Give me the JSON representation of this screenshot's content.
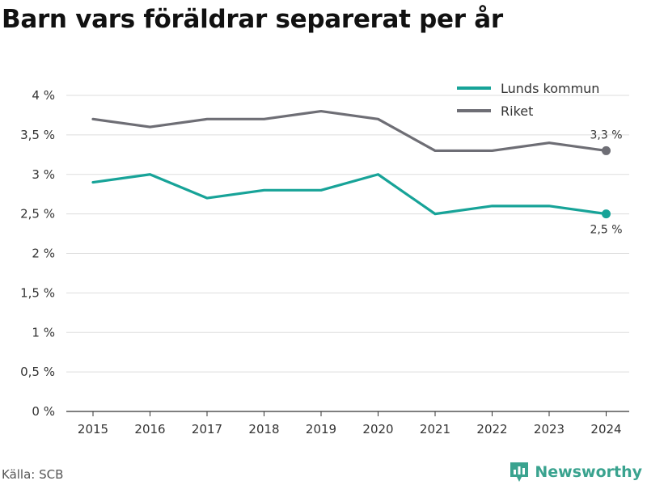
{
  "title": "Barn vars föräldrar separerat per år",
  "source": "Källa: SCB",
  "brand": {
    "name": "Newsworthy",
    "icon": "newsworthy-logo-icon",
    "color": "#3aa38f"
  },
  "chart_data": {
    "type": "line",
    "title": "Barn vars föräldrar separerat per år",
    "x": [
      "2015",
      "2016",
      "2017",
      "2018",
      "2019",
      "2020",
      "2021",
      "2022",
      "2023",
      "2024"
    ],
    "ylim": [
      0,
      4
    ],
    "yticks": [
      0,
      0.5,
      1,
      1.5,
      2,
      2.5,
      3,
      3.5,
      4
    ],
    "ytick_labels": [
      "0 %",
      "0,5 %",
      "1 %",
      "1,5 %",
      "2 %",
      "2,5 %",
      "3 %",
      "3,5 %",
      "4 %"
    ],
    "grid": true,
    "legend": "top-right",
    "series": [
      {
        "name": "Lunds kommun",
        "color": "#17a398",
        "values": [
          2.9,
          3.0,
          2.7,
          2.8,
          2.8,
          3.0,
          2.5,
          2.6,
          2.6,
          2.5
        ],
        "end_label": "2,5 %"
      },
      {
        "name": "Riket",
        "color": "#6e6e75",
        "values": [
          3.7,
          3.6,
          3.7,
          3.7,
          3.8,
          3.7,
          3.3,
          3.3,
          3.4,
          3.3
        ],
        "end_label": "3,3 %"
      }
    ]
  }
}
